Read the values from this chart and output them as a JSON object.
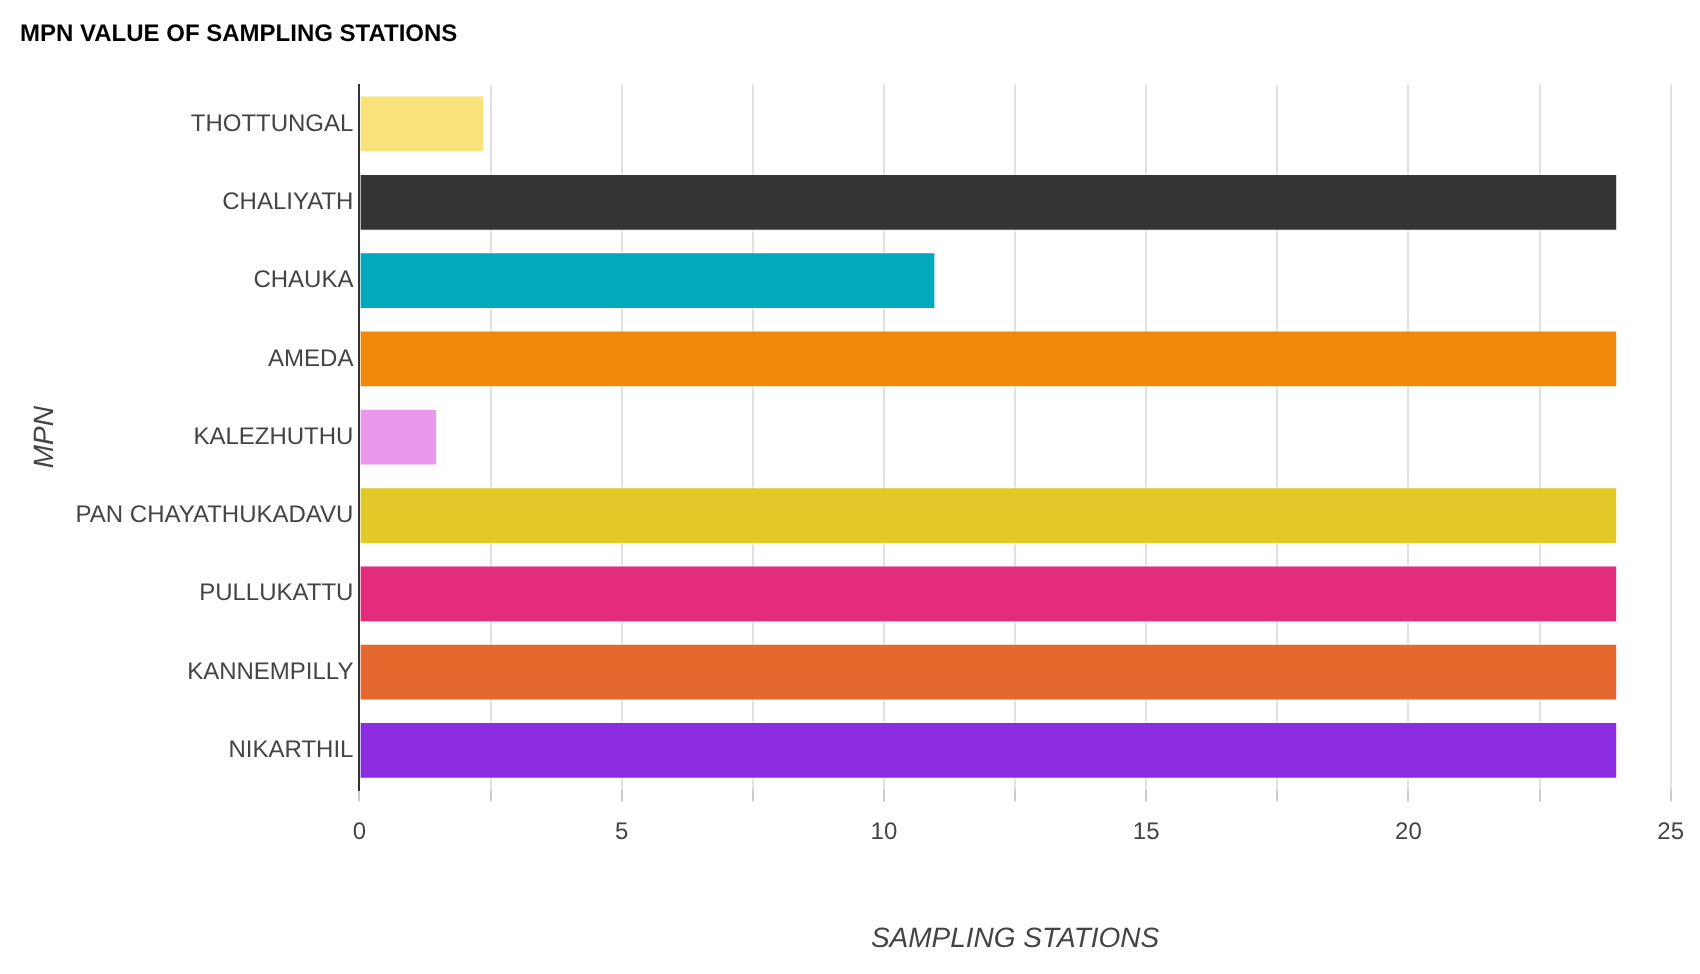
{
  "chart_data": {
    "type": "bar",
    "orientation": "horizontal",
    "title": "MPN VALUE OF SAMPLING STATIONS",
    "xlabel": "SAMPLING STATIONS",
    "ylabel": "MPN",
    "categories": [
      "THOTTUNGAL",
      "CHALIYATH",
      "CHAUKA",
      "AMEDA",
      "KALEZHUTHU",
      "PAN CHAYATHUKADAVU",
      "PULLUKATTU",
      "KANNEMPILLY",
      "NIKARTHIL"
    ],
    "values": [
      2.4,
      24,
      11,
      24,
      1.5,
      24,
      24,
      24,
      24
    ],
    "colors": [
      "#fae27a",
      "#343434",
      "#00a9bc",
      "#f2880a",
      "#ea98ed",
      "#e3c927",
      "#e42b7c",
      "#e5682e",
      "#8b2be2"
    ],
    "xlim": [
      0,
      25
    ],
    "xticks": [
      0,
      {
        "value": 2.5,
        "label": null
      },
      5,
      {
        "value": 7.5,
        "label": null
      },
      10,
      {
        "value": 12.5,
        "label": null
      },
      15,
      {
        "value": 17.5,
        "label": null
      },
      20,
      {
        "value": 22.5,
        "label": null
      },
      25
    ],
    "grid": "x",
    "legend": false
  }
}
